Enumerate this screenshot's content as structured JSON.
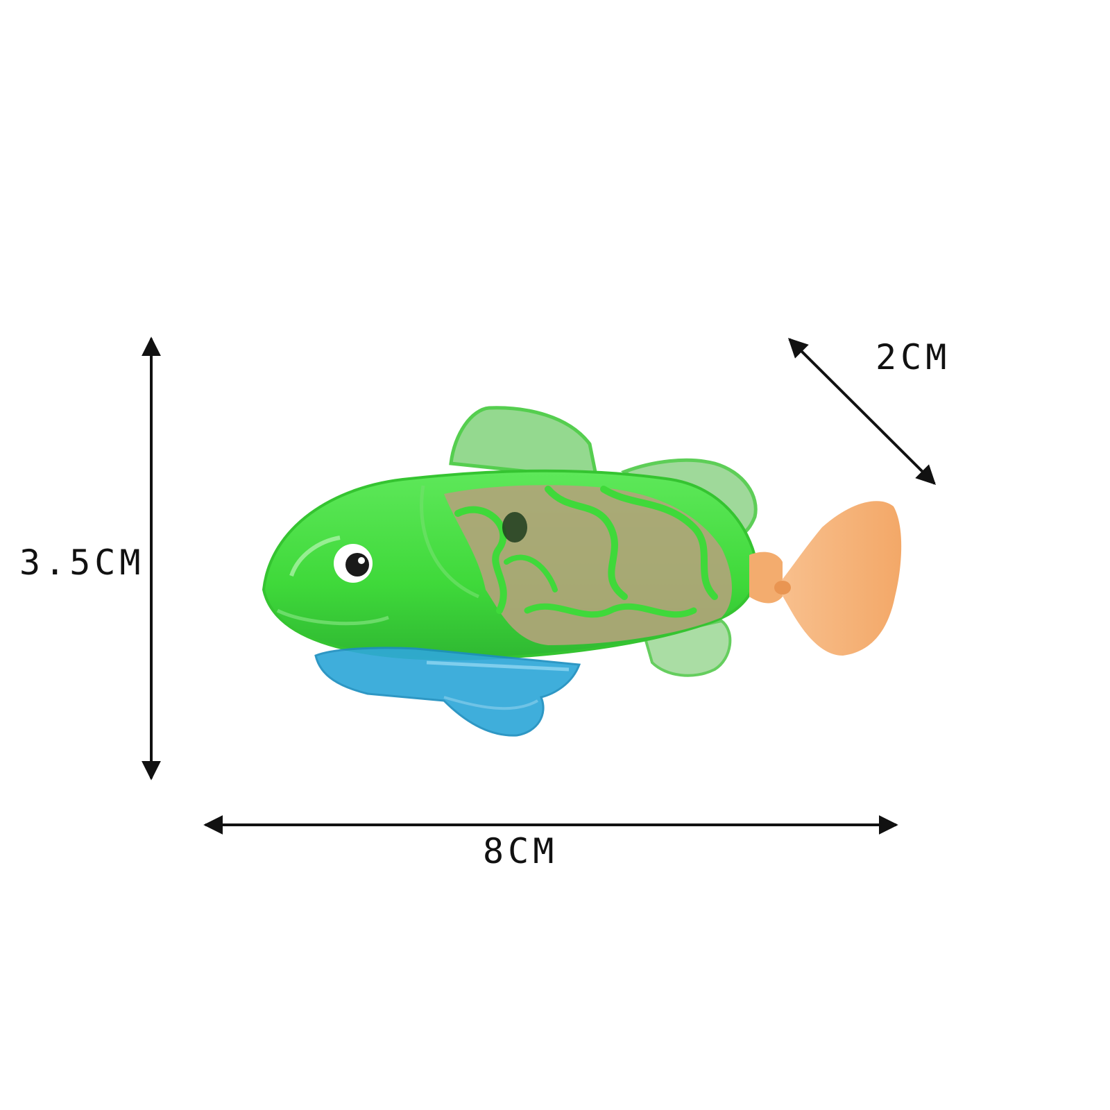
{
  "dimensions": {
    "height_label": "3.5CM",
    "length_label": "8CM",
    "depth_label": "2CM"
  },
  "colors": {
    "body_green": "#3fd93a",
    "pattern_tan": "#b3a37a",
    "fin_blue": "#2fa8d8",
    "tail_orange": "#f7b47a",
    "arrow": "#111111"
  }
}
